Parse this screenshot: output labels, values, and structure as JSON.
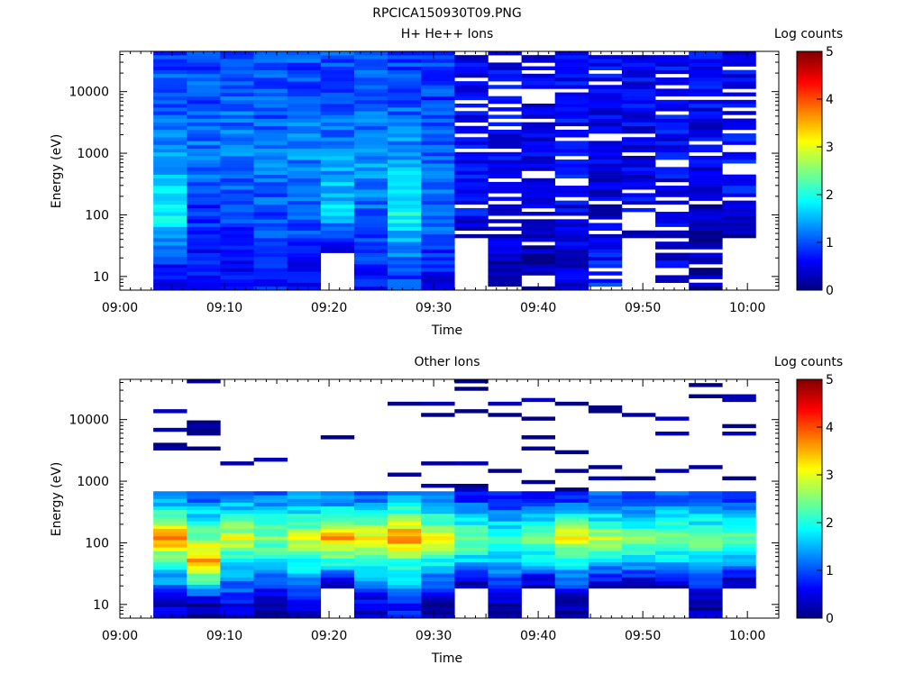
{
  "page_title": "RPCICA150930T09.PNG",
  "colors": {
    "axis": "#000000",
    "background": "#ffffff",
    "empty_bin": "#ffffff"
  },
  "colorbar": {
    "label": "Log counts",
    "ticks": [
      "0",
      "1",
      "2",
      "3",
      "4",
      "5"
    ],
    "range": [
      0,
      5
    ],
    "colormap": "jet"
  },
  "chart_data": [
    {
      "type": "heatmap",
      "title": "H+ He++ Ions",
      "xlabel": "Time",
      "ylabel": "Energy (eV)",
      "x_ticks": [
        "09:00",
        "09:10",
        "09:20",
        "09:30",
        "09:40",
        "09:50",
        "10:00"
      ],
      "x_range_minutes": [
        0,
        63
      ],
      "y_ticks": [
        "10",
        "100",
        "1000",
        "10000"
      ],
      "y_scale": "log",
      "y_range": [
        6,
        45000
      ],
      "time_columns_minutes": [
        3.2,
        6.4,
        9.6,
        12.8,
        16.0,
        19.2,
        22.4,
        25.6,
        28.8,
        32.0,
        35.2,
        38.4,
        41.6,
        44.8,
        48.0,
        51.2,
        54.4,
        57.6
      ],
      "energy_bins": 64,
      "log_counts_by_energy": {
        "10 eV": [
          0.5,
          0.7,
          0.6,
          0.8,
          0.6,
          null,
          0.8,
          0.9,
          0.6,
          null,
          0.3,
          0.2,
          0.4,
          0.8,
          null,
          0.5,
          0.2,
          null
        ],
        "100 eV": [
          1.9,
          0.8,
          0.9,
          1.0,
          1.1,
          1.7,
          1.1,
          1.9,
          1.2,
          0.6,
          0.5,
          0.4,
          0.5,
          0.4,
          0.6,
          0.5,
          0.3,
          0.6
        ],
        "1000 eV": [
          1.3,
          1.2,
          1.3,
          1.2,
          1.3,
          1.3,
          1.4,
          1.4,
          1.1,
          0.6,
          0.6,
          0.5,
          0.7,
          0.5,
          0.5,
          0.6,
          0.5,
          0.7
        ],
        "10000 eV": [
          1.0,
          1.0,
          1.0,
          1.0,
          1.0,
          1.0,
          1.0,
          1.0,
          0.9,
          0.5,
          0.6,
          0.6,
          0.6,
          0.6,
          0.6,
          0.6,
          0.6,
          0.6
        ]
      }
    },
    {
      "type": "heatmap",
      "title": "Other Ions",
      "xlabel": "Time",
      "ylabel": "Energy (eV)",
      "x_ticks": [
        "09:00",
        "09:10",
        "09:20",
        "09:30",
        "09:40",
        "09:50",
        "10:00"
      ],
      "x_range_minutes": [
        0,
        63
      ],
      "y_ticks": [
        "10",
        "100",
        "1000",
        "10000"
      ],
      "y_scale": "log",
      "y_range": [
        6,
        45000
      ],
      "time_columns_minutes": [
        3.2,
        6.4,
        9.6,
        12.8,
        16.0,
        19.2,
        22.4,
        25.6,
        28.8,
        32.0,
        35.2,
        38.4,
        41.6,
        44.8,
        48.0,
        51.2,
        54.4,
        57.6
      ],
      "energy_bins": 64,
      "log_counts_by_energy": {
        "10 eV": [
          0.4,
          0.2,
          0.5,
          0.3,
          0.4,
          null,
          0.4,
          0.8,
          0.1,
          null,
          0.2,
          null,
          0.1,
          null,
          null,
          null,
          0.2,
          null
        ],
        "50 eV": [
          2.1,
          3.6,
          1.9,
          1.8,
          2.0,
          2.0,
          2.0,
          2.2,
          1.9,
          1.6,
          1.5,
          1.7,
          1.8,
          1.7,
          1.6,
          1.6,
          1.6,
          1.5
        ],
        "120 eV": [
          3.7,
          2.6,
          3.0,
          2.5,
          2.9,
          3.5,
          3.2,
          3.8,
          3.1,
          2.6,
          2.3,
          2.4,
          3.3,
          2.7,
          2.5,
          2.6,
          2.5,
          2.4
        ],
        "500 eV": [
          1.3,
          1.2,
          1.3,
          1.2,
          1.3,
          1.2,
          1.2,
          1.4,
          1.1,
          0.8,
          0.7,
          0.7,
          0.8,
          1.0,
          1.0,
          1.0,
          1.0,
          1.0
        ]
      }
    }
  ]
}
